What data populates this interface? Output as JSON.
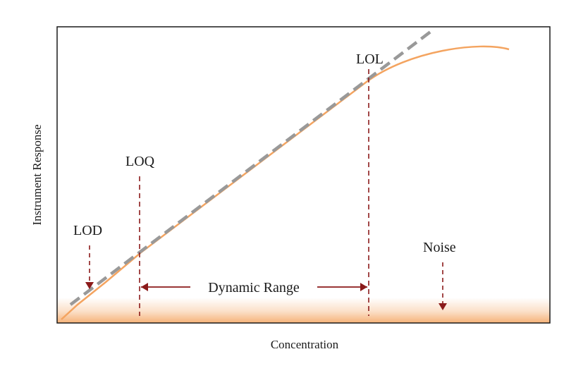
{
  "diagram": {
    "type": "calibration-curve",
    "x_axis_label": "Concentration",
    "y_axis_label": "Instrument Response",
    "labels": {
      "lod": "LOD",
      "loq": "LOQ",
      "lol": "LOL",
      "noise": "Noise",
      "dynamic_range": "Dynamic Range"
    },
    "colors": {
      "axes": "#1a1a1a",
      "response_curve": "#f4a460",
      "linear_fit": "#999999",
      "markers": "#8b1a1a",
      "noise_band": "#f4a460"
    }
  }
}
